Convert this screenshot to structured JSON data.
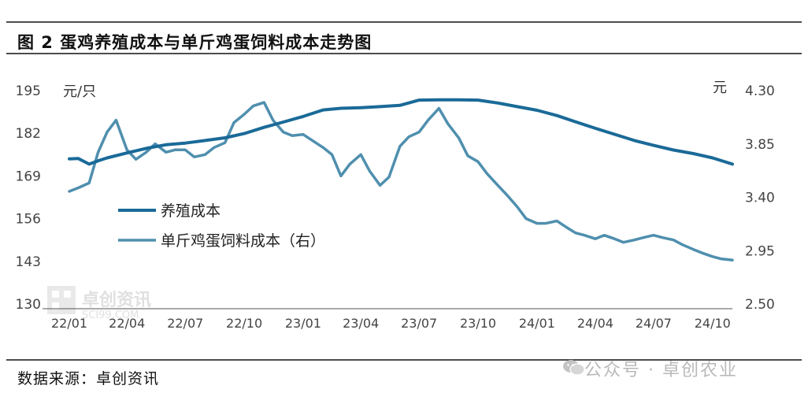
{
  "title": "图 2 蛋鸡养殖成本与单斤鸡蛋饲料成本走势图",
  "source": "数据来源：卓创资讯",
  "watermark": {
    "logo_text": "卓创资讯",
    "logo_sub": "SCI99.COM",
    "wechat_text": "公众号 · 卓创农业",
    "icon": "wechat-icon"
  },
  "colors": {
    "breeding": "#1a6a98",
    "feed": "#4f8fae",
    "rule": "#111111",
    "axis": "#555555"
  },
  "chart_data": {
    "type": "line",
    "ylabel_left": "元/只",
    "ylabel_right": "元",
    "yticks_left": [
      "195",
      "182",
      "169",
      "156",
      "143",
      "130"
    ],
    "yticks_right": [
      "4.30",
      "3.85",
      "3.40",
      "2.95",
      "2.50"
    ],
    "ylim_left": [
      130,
      195
    ],
    "ylim_right": [
      2.5,
      4.3
    ],
    "xticks": [
      "22/01",
      "22/04",
      "22/07",
      "22/10",
      "23/01",
      "23/04",
      "23/07",
      "23/10",
      "24/01",
      "24/04",
      "24/07",
      "24/10"
    ],
    "legend": [
      "养殖成本",
      "单斤鸡蛋饲料成本（右）"
    ],
    "legend_position": "left-middle",
    "grid": false,
    "series": [
      {
        "name": "养殖成本",
        "axis": "left",
        "x": [
          "2022-01-01",
          "2022-01-15",
          "2022-02-01",
          "2022-02-15",
          "2022-03-01",
          "2022-04-01",
          "2022-05-01",
          "2022-06-01",
          "2022-07-01",
          "2022-08-01",
          "2022-09-01",
          "2022-10-01",
          "2022-11-01",
          "2022-12-01",
          "2023-01-01",
          "2023-02-01",
          "2023-03-01",
          "2023-04-01",
          "2023-05-01",
          "2023-06-01",
          "2023-07-01",
          "2023-08-01",
          "2023-09-01",
          "2023-10-01",
          "2023-11-01",
          "2023-12-01",
          "2024-01-01",
          "2024-02-01",
          "2024-03-01",
          "2024-04-01",
          "2024-05-01",
          "2024-06-01",
          "2024-07-01",
          "2024-08-01",
          "2024-09-01",
          "2024-10-01",
          "2024-11-01"
        ],
        "values": [
          174.2,
          174.3,
          172.6,
          173.6,
          174.5,
          176.0,
          177.4,
          178.5,
          179.0,
          179.8,
          180.6,
          181.9,
          183.8,
          185.4,
          187.1,
          189.1,
          189.6,
          189.8,
          190.1,
          190.5,
          192.1,
          192.2,
          192.2,
          192.1,
          191.2,
          190.1,
          189.0,
          187.4,
          185.5,
          183.5,
          181.7,
          179.8,
          178.3,
          176.9,
          175.8,
          174.5,
          172.6
        ]
      },
      {
        "name": "单斤鸡蛋饲料成本（右）",
        "axis": "right",
        "x": [
          "2022-01-01",
          "2022-01-15",
          "2022-02-01",
          "2022-02-15",
          "2022-03-01",
          "2022-03-15",
          "2022-04-01",
          "2022-04-15",
          "2022-05-01",
          "2022-05-15",
          "2022-06-01",
          "2022-06-15",
          "2022-07-01",
          "2022-07-15",
          "2022-08-01",
          "2022-08-15",
          "2022-09-01",
          "2022-09-15",
          "2022-10-01",
          "2022-10-15",
          "2022-11-01",
          "2022-11-15",
          "2022-12-01",
          "2022-12-15",
          "2023-01-01",
          "2023-01-15",
          "2023-02-01",
          "2023-02-15",
          "2023-03-01",
          "2023-03-15",
          "2023-04-01",
          "2023-04-15",
          "2023-05-01",
          "2023-05-15",
          "2023-06-01",
          "2023-06-15",
          "2023-07-01",
          "2023-07-15",
          "2023-08-01",
          "2023-08-15",
          "2023-09-01",
          "2023-09-15",
          "2023-10-01",
          "2023-10-15",
          "2023-11-01",
          "2023-11-15",
          "2023-12-01",
          "2023-12-15",
          "2024-01-01",
          "2024-01-15",
          "2024-02-01",
          "2024-02-15",
          "2024-03-01",
          "2024-03-15",
          "2024-04-01",
          "2024-04-15",
          "2024-05-01",
          "2024-05-15",
          "2024-06-01",
          "2024-06-15",
          "2024-07-01",
          "2024-07-15",
          "2024-08-01",
          "2024-08-15",
          "2024-09-01",
          "2024-09-15",
          "2024-10-01",
          "2024-10-15",
          "2024-11-01"
        ],
        "values": [
          3.45,
          3.48,
          3.52,
          3.78,
          3.95,
          4.05,
          3.8,
          3.72,
          3.78,
          3.85,
          3.78,
          3.8,
          3.8,
          3.74,
          3.76,
          3.82,
          3.86,
          4.03,
          4.1,
          4.17,
          4.2,
          4.05,
          3.95,
          3.92,
          3.93,
          3.88,
          3.82,
          3.76,
          3.58,
          3.68,
          3.76,
          3.62,
          3.5,
          3.57,
          3.83,
          3.91,
          3.95,
          4.05,
          4.15,
          4.02,
          3.9,
          3.75,
          3.7,
          3.6,
          3.5,
          3.42,
          3.32,
          3.22,
          3.18,
          3.18,
          3.2,
          3.15,
          3.1,
          3.08,
          3.05,
          3.08,
          3.05,
          3.02,
          3.04,
          3.06,
          3.08,
          3.06,
          3.04,
          3.0,
          2.96,
          2.93,
          2.9,
          2.88,
          2.87
        ]
      }
    ]
  }
}
